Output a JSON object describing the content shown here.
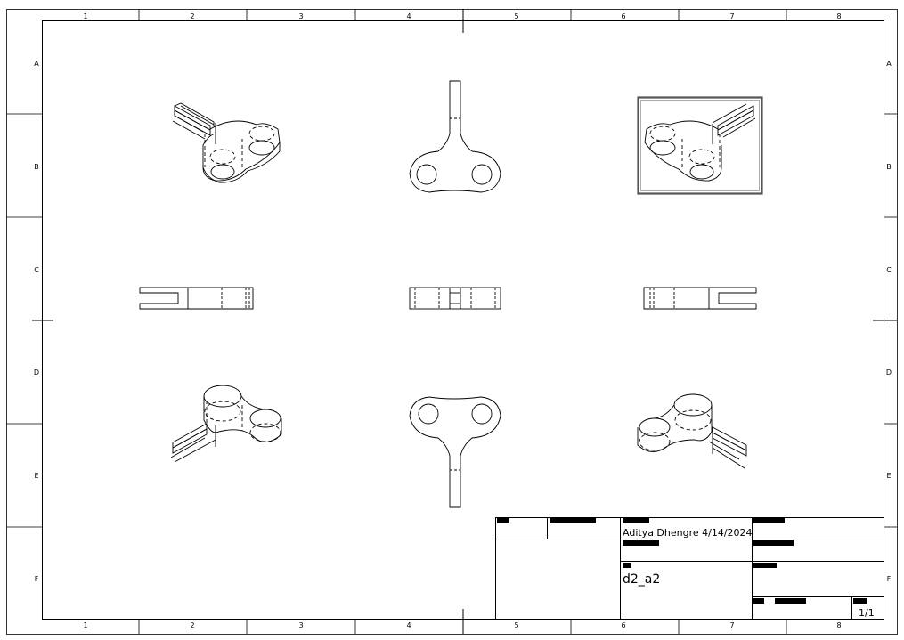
{
  "border": {
    "columns": [
      "1",
      "2",
      "3",
      "4",
      "5",
      "6",
      "7",
      "8"
    ],
    "rows": [
      "A",
      "B",
      "C",
      "D",
      "E",
      "F"
    ]
  },
  "title_block": {
    "author_date": "Aditya Dhengre   4/14/2024",
    "drawing_name": "d2_a2",
    "sheet": "1/1"
  },
  "colors": {
    "line": "#000000",
    "redaction": "#000000",
    "selection_frame": "#555555",
    "background": "#ffffff"
  }
}
